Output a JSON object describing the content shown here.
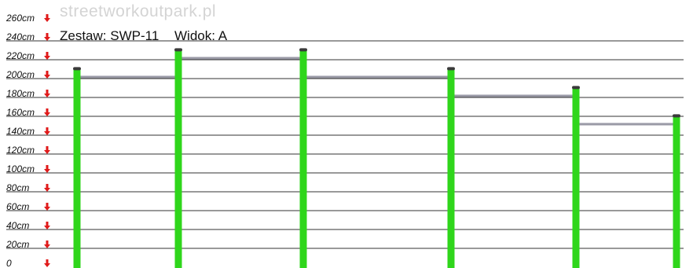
{
  "header": {
    "watermark": "streetworkoutpark.pl",
    "set_label": "Zestaw: SWP-11",
    "view_label": "Widok: A"
  },
  "scale": {
    "unit": "cm",
    "ticks": [
      "260cm",
      "240cm",
      "220cm",
      "200cm",
      "180cm",
      "160cm",
      "140cm",
      "120cm",
      "100cm",
      "80cm",
      "60cm",
      "40cm",
      "20cm",
      "0"
    ],
    "tick_values": [
      260,
      240,
      220,
      200,
      180,
      160,
      140,
      120,
      100,
      80,
      60,
      40,
      20,
      0
    ],
    "marker": "red-down-arrow-icon"
  },
  "structure": {
    "post_heights_cm": [
      208,
      228,
      228,
      208,
      188,
      158
    ],
    "bar_heights_cm": [
      200,
      220,
      200,
      180,
      150
    ]
  },
  "colors": {
    "post": "#2fd61b",
    "post_cap": "#3a3a3a",
    "bar": "#9a9aa6",
    "gridline": "#333333",
    "arrow": "#e01a1a",
    "tick_label": "#111111",
    "watermark": "#d4d4d4"
  }
}
